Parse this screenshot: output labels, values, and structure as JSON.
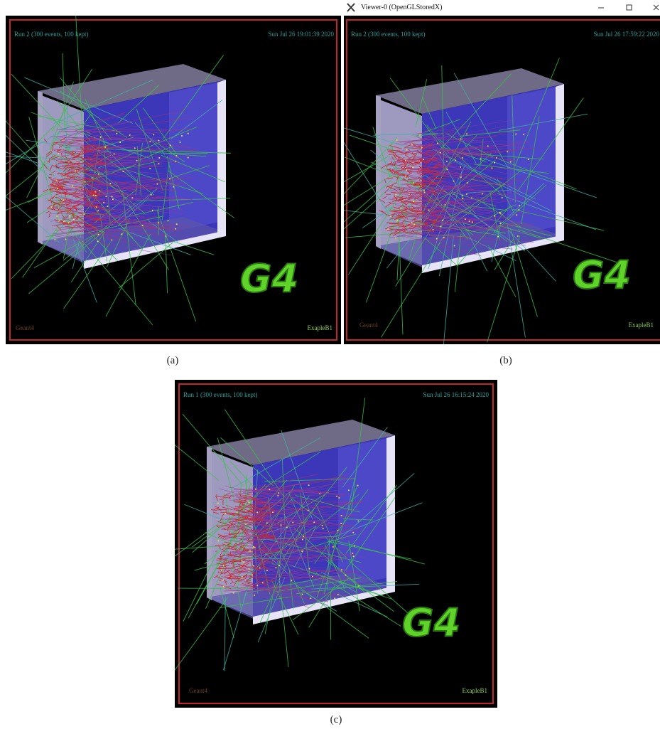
{
  "figure": {
    "panels": [
      {
        "run": "Run 2 (300 events, 100 kept)",
        "date": "Sun Jul 26 19:01:39 2020",
        "left_label": "Geant4",
        "right_label": "ExapleB1",
        "logo": "G4",
        "caption": "(a)"
      },
      {
        "window_title": "Viewer-0 (OpenGLStoredX)",
        "run": "Run 2 (300 events, 100 kept)",
        "date": "Sun Jul 26 17:59:22 2020",
        "left_label": "Geant4",
        "right_label": "ExapleB1",
        "logo": "G4",
        "caption": "(b)"
      },
      {
        "run": "Run 1 (300 events, 100 kept)",
        "date": "Sun Jul 26 16:15:24 2020",
        "left_label": "Geant4",
        "right_label": "ExapleB1",
        "logo": "G4",
        "caption": "(c)"
      }
    ]
  }
}
